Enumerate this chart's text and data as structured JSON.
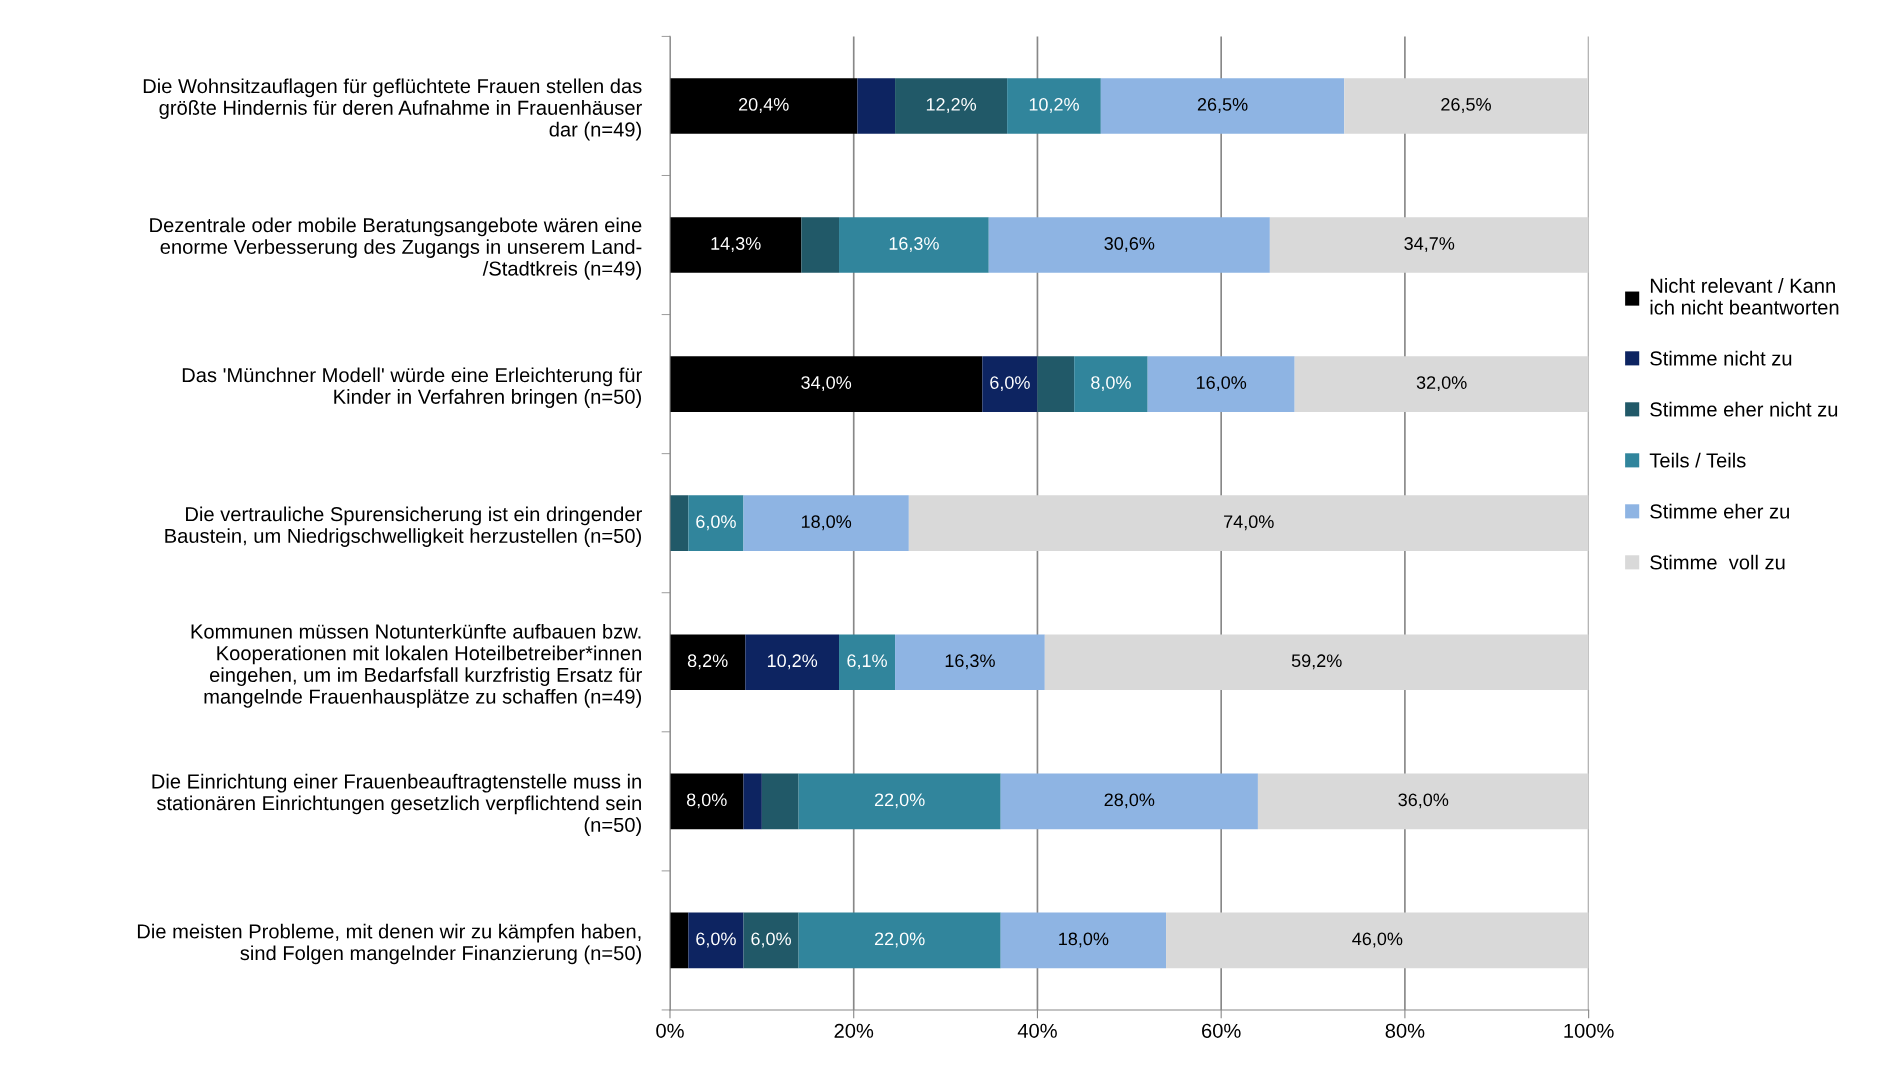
{
  "chart_data": {
    "type": "bar",
    "orientation": "horizontal",
    "stacked": true,
    "legend": "right",
    "grid": "x",
    "categories": [
      "Die Wohnsitzauflagen für geflüchtete Frauen stellen das\ngrößte Hindernis für deren Aufnahme in Frauenhäuser\ndar (n=49)",
      "Dezentrale oder mobile Beratungsangebote wären eine\nenorme Verbesserung des Zugangs in unserem Land-\n/Stadtkreis (n=49)",
      "Das 'Münchner Modell' würde eine Erleichterung für\nKinder in Verfahren bringen (n=50)",
      "Die vertrauliche Spurensicherung ist ein dringender\nBaustein, um Niedrigschwelligkeit herzustellen (n=50)",
      "Kommunen müssen Notunterkünfte aufbauen bzw.\nKooperationen mit lokalen Hoteilbetreiber*innen\neingehen, um im Bedarfsfall kurzfristig Ersatz für\nmangelnde Frauenhausplätze zu schaffen (n=49)",
      "Die Einrichtung einer Frauenbeauftragtenstelle muss in\nstationären Einrichtungen gesetzlich verpflichtend sein\n(n=50)",
      "Die meisten Probleme, mit denen wir zu kämpfen haben,\nsind Folgen mangelnder Finanzierung (n=50)"
    ],
    "series": [
      {
        "name": "Nicht relevant / Kann\nich nicht beantworten",
        "color": "#000000",
        "values": [
          20.4,
          14.3,
          34.0,
          0,
          8.2,
          8.0,
          2.0
        ],
        "value_labels": [
          "20,4%",
          "14,3%",
          "34,0%",
          null,
          "8,2%",
          "8,0%",
          null
        ]
      },
      {
        "name": "Stimme nicht zu",
        "color": "#0d2461",
        "values": [
          4.1,
          0,
          6.0,
          0,
          10.2,
          2.0,
          6.0
        ],
        "value_labels": [
          null,
          null,
          "6,0%",
          null,
          "10,2%",
          null,
          "6,0%"
        ]
      },
      {
        "name": "Stimme eher nicht zu",
        "color": "#215968",
        "values": [
          12.2,
          4.1,
          4.0,
          2.0,
          0,
          4.0,
          6.0
        ],
        "value_labels": [
          "12,2%",
          null,
          null,
          null,
          null,
          null,
          "6,0%"
        ]
      },
      {
        "name": "Teils / Teils",
        "color": "#31859c",
        "values": [
          10.2,
          16.3,
          8.0,
          6.0,
          6.1,
          22.0,
          22.0
        ],
        "value_labels": [
          "10,2%",
          "16,3%",
          "8,0%",
          "6,0%",
          "6,1%",
          "22,0%",
          "22,0%"
        ]
      },
      {
        "name": "Stimme eher zu",
        "color": "#8eb4e3",
        "values": [
          26.5,
          30.6,
          16.0,
          18.0,
          16.3,
          28.0,
          18.0
        ],
        "value_labels": [
          "26,5%",
          "30,6%",
          "16,0%",
          "18,0%",
          "16,3%",
          "28,0%",
          "18,0%"
        ]
      },
      {
        "name": "Stimme  voll zu",
        "color": "#d9d9d9",
        "values": [
          26.5,
          34.7,
          32.0,
          74.0,
          59.2,
          36.0,
          46.0
        ],
        "value_labels": [
          "26,5%",
          "34,7%",
          "32,0%",
          "74,0%",
          "59,2%",
          "36,0%",
          "46,0%"
        ]
      }
    ],
    "xlim": [
      0,
      100
    ],
    "xticks": [
      {
        "value": 0,
        "label": "0%"
      },
      {
        "value": 20,
        "label": "20%"
      },
      {
        "value": 40,
        "label": "40%"
      },
      {
        "value": 60,
        "label": "60%"
      },
      {
        "value": 80,
        "label": "80%"
      },
      {
        "value": 100,
        "label": "100%"
      }
    ]
  }
}
